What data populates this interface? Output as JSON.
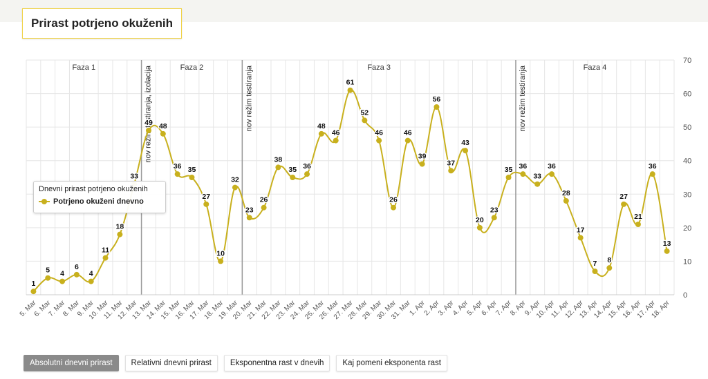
{
  "header": {
    "title": "Prirast potrjeno okuženih"
  },
  "colors": {
    "line": "#c8b01d",
    "phase_line": "#999999",
    "grid": "#e6e6e6"
  },
  "tooltip": {
    "title": "Dnevni prirast potrjeno okuženih",
    "series": "Potrjeno okuženi dnevno"
  },
  "buttons": [
    {
      "label": "Absolutni dnevni prirast",
      "active": true
    },
    {
      "label": "Relativni dnevni prirast",
      "active": false
    },
    {
      "label": "Eksponentna rast v dnevih",
      "active": false
    },
    {
      "label": "Kaj pomeni eksponenta rast",
      "active": false
    }
  ],
  "chart_data": {
    "type": "line",
    "title": "Prirast potrjeno okuženih",
    "x": [
      "5. Mar",
      "6. Mar",
      "7. Mar",
      "8. Mar",
      "9. Mar",
      "10. Mar",
      "11. Mar",
      "12. Mar",
      "13. Mar",
      "14. Mar",
      "15. Mar",
      "16. Mar",
      "17. Mar",
      "18. Mar",
      "19. Mar",
      "20. Mar",
      "21. Mar",
      "22. Mar",
      "23. Mar",
      "24. Mar",
      "25. Mar",
      "26. Mar",
      "27. Mar",
      "28. Mar",
      "29. Mar",
      "30. Mar",
      "31. Mar",
      "1. Apr",
      "2. Apr",
      "3. Apr",
      "4. Apr",
      "5. Apr",
      "6. Apr",
      "7. Apr",
      "8. Apr",
      "9. Apr",
      "10. Apr",
      "11. Apr",
      "12. Apr",
      "13. Apr",
      "14. Apr",
      "15. Apr",
      "16. Apr",
      "17. Apr",
      "18. Apr"
    ],
    "series": [
      {
        "name": "Potrjeno okuženi dnevno",
        "values": [
          1,
          5,
          4,
          6,
          4,
          11,
          18,
          33,
          49,
          48,
          36,
          35,
          27,
          10,
          32,
          23,
          26,
          38,
          35,
          36,
          48,
          46,
          61,
          52,
          46,
          26,
          46,
          39,
          56,
          37,
          43,
          20,
          23,
          35,
          36,
          33,
          36,
          28,
          17,
          7,
          8,
          27,
          21,
          36,
          13
        ]
      }
    ],
    "ylim": [
      0,
      70
    ],
    "yticks": [
      0,
      10,
      20,
      30,
      40,
      50,
      60,
      70
    ],
    "y_axis_position": "right",
    "grid": true,
    "bands": [
      {
        "label": "Faza 1",
        "from": -0.5,
        "to": 7.5
      },
      {
        "label": "Faza 2",
        "from": 7.5,
        "to": 14.5
      },
      {
        "label": "Faza 3",
        "from": 14.5,
        "to": 33.5
      },
      {
        "label": "Faza 4",
        "from": 33.5,
        "to": 44.5
      }
    ],
    "plot_lines": [
      {
        "value": 7.5,
        "label": "nov režim testiranja, izolacija"
      },
      {
        "value": 14.5,
        "label": "nov režim testiranja"
      },
      {
        "value": 33.5,
        "label": "nov režim testiranja"
      }
    ]
  }
}
